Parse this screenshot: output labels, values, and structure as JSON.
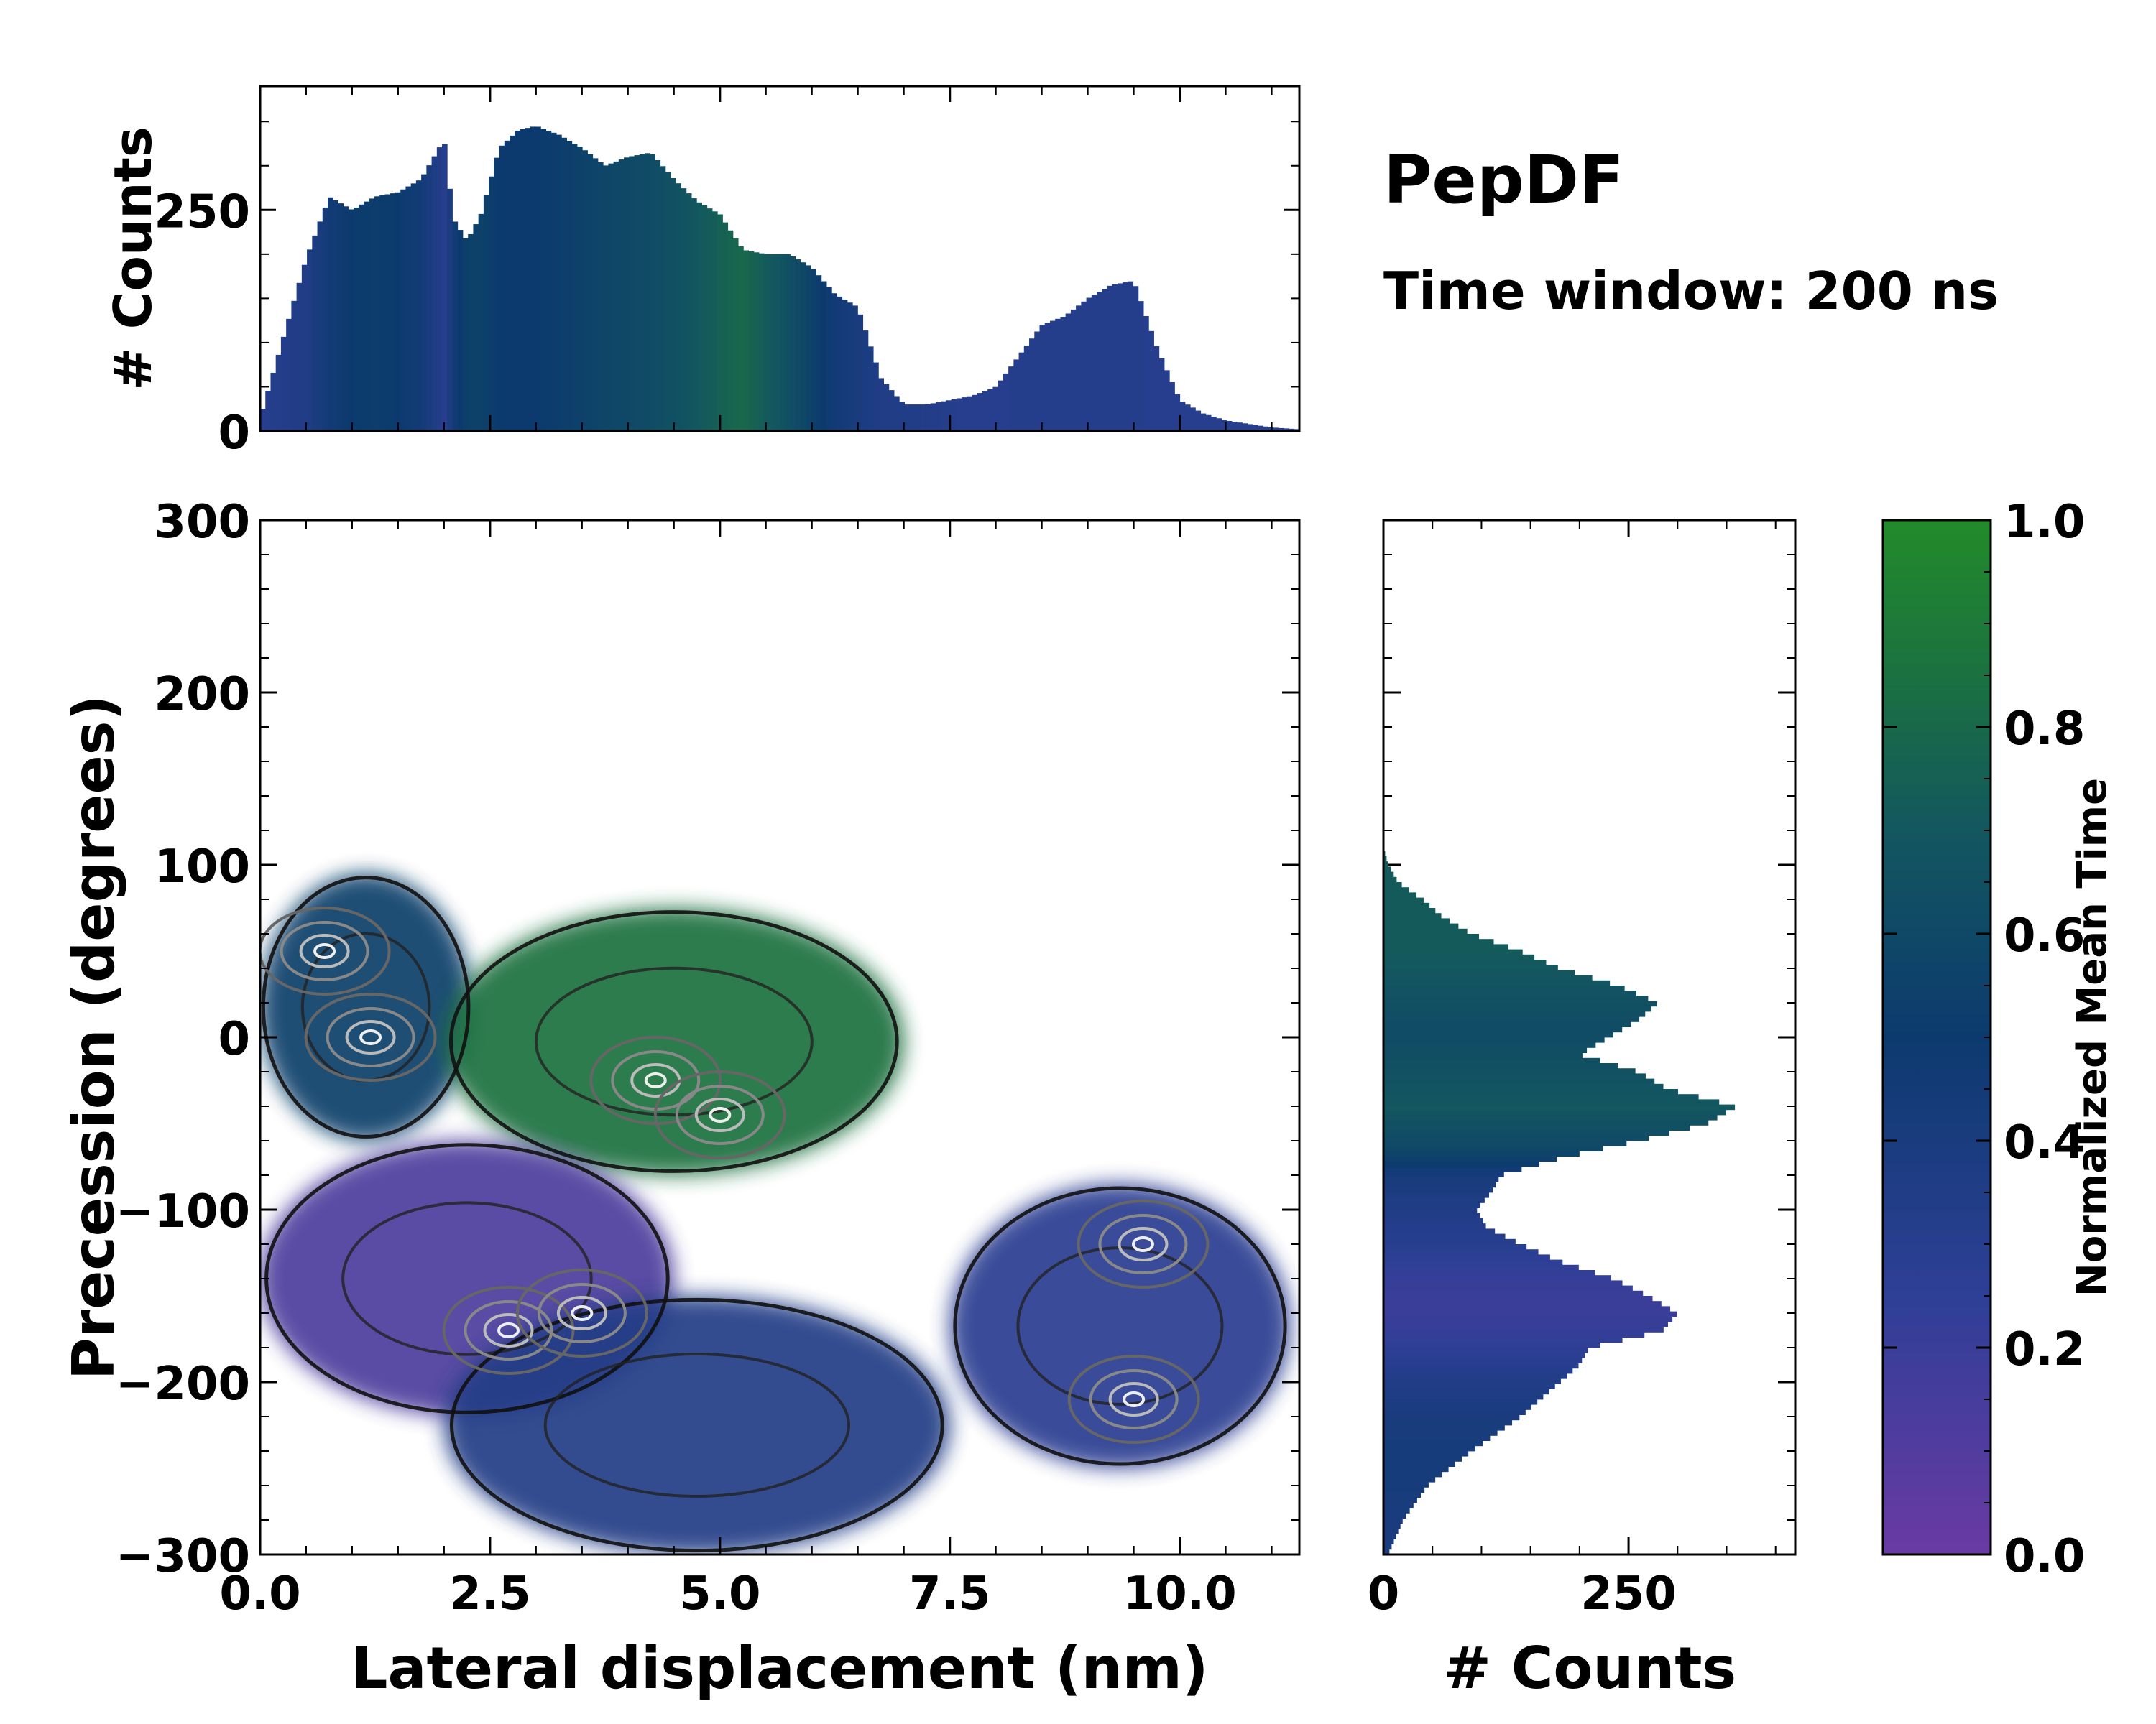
{
  "title": "PepDF",
  "subtitle": "Time window: 200 ns",
  "colors": {
    "purple": "#6a3aa4",
    "blue": "#1c3f8a",
    "navy": "#0e3a66",
    "teal": "#1e6a5e",
    "green": "#228b2a"
  },
  "chart_data": [
    {
      "id": "main",
      "type": "heatmap",
      "xlabel": "Lateral displacement (nm)",
      "ylabel": "Precession (degrees)",
      "xlim": [
        0,
        11.3
      ],
      "ylim": [
        -300,
        300
      ],
      "xticks": [
        0.0,
        2.5,
        5.0,
        7.5,
        10.0
      ],
      "xtick_labels": [
        "0.0",
        "2.5",
        "5.0",
        "7.5",
        "10.0"
      ],
      "yticks": [
        -300,
        -200,
        -100,
        0,
        100,
        200,
        300
      ],
      "ytick_labels": [
        "−300",
        "−200",
        "−100",
        "0",
        "100",
        "200",
        "300"
      ],
      "regions": [
        {
          "name": "upper-left cluster",
          "x": [
            0.0,
            2.3
          ],
          "y": [
            -60,
            95
          ],
          "time": 0.55
        },
        {
          "name": "green cluster",
          "x": [
            2.0,
            7.0
          ],
          "y": [
            -80,
            75
          ],
          "time": 0.85
        },
        {
          "name": "purple cluster",
          "x": [
            0.0,
            4.5
          ],
          "y": [
            -220,
            -60
          ],
          "time": 0.12
        },
        {
          "name": "bridge region",
          "x": [
            2.0,
            7.5
          ],
          "y": [
            -300,
            -150
          ],
          "time": 0.35
        },
        {
          "name": "right cluster",
          "x": [
            7.5,
            11.2
          ],
          "y": [
            -250,
            -85
          ],
          "time": 0.28
        }
      ],
      "density_peaks": [
        {
          "x": 0.7,
          "y": 50
        },
        {
          "x": 1.2,
          "y": 0
        },
        {
          "x": 4.3,
          "y": -25
        },
        {
          "x": 5.0,
          "y": -45
        },
        {
          "x": 2.7,
          "y": -170
        },
        {
          "x": 3.5,
          "y": -160
        },
        {
          "x": 9.5,
          "y": -210
        },
        {
          "x": 9.6,
          "y": -120
        }
      ]
    },
    {
      "id": "top-histogram",
      "type": "bar",
      "ylabel": "# Counts",
      "xlim": [
        0,
        11.3
      ],
      "ylim": [
        0,
        390
      ],
      "yticks": [
        0,
        250
      ],
      "ytick_labels": [
        "0",
        "250"
      ],
      "bin_width": 0.0565,
      "x": [
        0.0,
        0.5,
        0.75,
        1.0,
        1.25,
        1.5,
        1.75,
        2.0,
        2.1,
        2.25,
        2.4,
        2.6,
        2.8,
        3.0,
        3.25,
        3.5,
        3.75,
        4.0,
        4.25,
        4.5,
        4.75,
        5.0,
        5.25,
        5.5,
        5.75,
        6.0,
        6.25,
        6.5,
        6.75,
        7.0,
        7.25,
        7.5,
        7.75,
        8.0,
        8.25,
        8.5,
        8.75,
        9.0,
        9.25,
        9.5,
        9.75,
        10.0,
        10.25,
        10.5,
        10.75,
        11.0,
        11.3
      ],
      "y": [
        15,
        195,
        265,
        250,
        265,
        270,
        285,
        330,
        240,
        215,
        245,
        320,
        340,
        345,
        335,
        320,
        300,
        310,
        315,
        285,
        260,
        245,
        205,
        200,
        200,
        185,
        155,
        140,
        60,
        30,
        30,
        35,
        40,
        50,
        85,
        120,
        130,
        150,
        165,
        170,
        95,
        35,
        20,
        12,
        8,
        4,
        2
      ],
      "time": [
        0.3,
        0.35,
        0.45,
        0.5,
        0.52,
        0.5,
        0.45,
        0.3,
        0.45,
        0.55,
        0.55,
        0.5,
        0.5,
        0.5,
        0.52,
        0.55,
        0.58,
        0.6,
        0.62,
        0.65,
        0.7,
        0.75,
        0.8,
        0.72,
        0.65,
        0.55,
        0.45,
        0.4,
        0.35,
        0.35,
        0.33,
        0.32,
        0.3,
        0.3,
        0.32,
        0.32,
        0.32,
        0.32,
        0.32,
        0.32,
        0.3,
        0.3,
        0.3,
        0.3,
        0.3,
        0.3,
        0.3
      ]
    },
    {
      "id": "right-histogram",
      "type": "bar",
      "orientation": "horizontal",
      "xlabel": "# Counts",
      "xlim": [
        0,
        420
      ],
      "xticks": [
        0,
        250
      ],
      "xtick_labels": [
        "0",
        "250"
      ],
      "bin_width": 3.0,
      "y": [
        -300,
        -280,
        -260,
        -240,
        -220,
        -200,
        -190,
        -180,
        -170,
        -160,
        -150,
        -140,
        -130,
        -120,
        -110,
        -100,
        -90,
        -80,
        -70,
        -60,
        -50,
        -40,
        -30,
        -20,
        -10,
        0,
        10,
        20,
        30,
        40,
        50,
        60,
        70,
        80,
        90,
        100,
        110,
        300
      ],
      "x": [
        5,
        20,
        45,
        90,
        140,
        180,
        200,
        210,
        285,
        300,
        270,
        235,
        180,
        140,
        105,
        95,
        110,
        120,
        180,
        260,
        330,
        360,
        290,
        260,
        200,
        230,
        260,
        280,
        240,
        180,
        140,
        90,
        60,
        40,
        15,
        5,
        0,
        0
      ],
      "time": [
        0.4,
        0.4,
        0.42,
        0.42,
        0.4,
        0.35,
        0.3,
        0.25,
        0.22,
        0.2,
        0.2,
        0.22,
        0.25,
        0.3,
        0.32,
        0.35,
        0.38,
        0.42,
        0.55,
        0.62,
        0.65,
        0.7,
        0.68,
        0.66,
        0.64,
        0.62,
        0.63,
        0.65,
        0.68,
        0.7,
        0.72,
        0.72,
        0.72,
        0.72,
        0.72,
        0.72,
        0.72,
        0.72
      ]
    },
    {
      "id": "colorbar",
      "type": "colorbar",
      "label": "Normalized Mean Time",
      "range": [
        0.0,
        1.0
      ],
      "ticks": [
        0.0,
        0.2,
        0.4,
        0.6,
        0.8,
        1.0
      ],
      "tick_labels": [
        "0.0",
        "0.2",
        "0.4",
        "0.6",
        "0.8",
        "1.0"
      ]
    }
  ]
}
